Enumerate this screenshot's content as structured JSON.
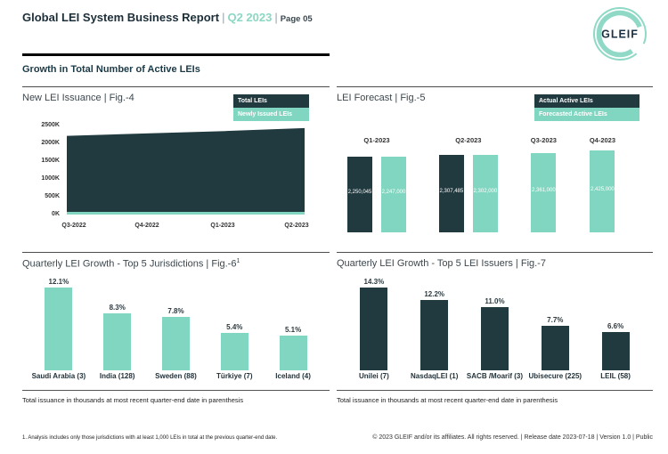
{
  "header": {
    "title": "Global LEI System Business Report",
    "sep": "|",
    "period": "Q2 2023",
    "page_label": "Page 05",
    "logo": "GLEIF"
  },
  "section_heading": "Growth in Total Number of Active LEIs",
  "colors": {
    "dark": "#213a3f",
    "mint": "#80d6c0",
    "header_accent": "#8bd7c3",
    "heading_text": "#1b3a47"
  },
  "chart_data": [
    {
      "id": "fig4",
      "type": "area",
      "title": "New LEI Issuance | Fig.-4",
      "categories": [
        "Q3-2022",
        "Q4-2022",
        "Q1-2023",
        "Q2-2023"
      ],
      "series": [
        {
          "name": "Total LEIs",
          "color": "#213a3f",
          "values": [
            2200000,
            2270000,
            2340000,
            2425000
          ],
          "values_estimated": true
        },
        {
          "name": "Newly Issued LEIs",
          "color": "#80d6c0",
          "values": [
            75000,
            75000,
            75000,
            75000
          ],
          "values_estimated": true
        }
      ],
      "y_ticks": [
        "2500K",
        "2000K",
        "1500K",
        "1000K",
        "500K",
        "0K"
      ],
      "ylim": [
        0,
        2500000
      ],
      "legend_position": "top-right",
      "grid": false
    },
    {
      "id": "fig5",
      "type": "bar",
      "title": "LEI Forecast | Fig.-5",
      "categories": [
        "Q1-2023",
        "Q2-2023",
        "Q3-2023",
        "Q4-2023"
      ],
      "series": [
        {
          "name": "Actual Active LEIs",
          "color": "#213a3f",
          "values": [
            2250045,
            2307485,
            null,
            null
          ]
        },
        {
          "name": "Forecasted Active LEIs",
          "color": "#80d6c0",
          "values": [
            2247000,
            2302000,
            2361000,
            2425000
          ]
        }
      ],
      "bar_labels": [
        "2,250,045",
        "2,247,000",
        "2,307,485",
        "2,302,000",
        "2,361,000",
        "2,425,000"
      ],
      "legend_position": "top-right",
      "grid": false
    },
    {
      "id": "fig6",
      "type": "bar",
      "title_main": "Quarterly LEI Growth - Top 5 Jurisdictions | Fig.-6",
      "title_superscript": "1",
      "categories": [
        "Saudi Arabia (3)",
        "India (128)",
        "Sweden (88)",
        "Türkiye (7)",
        "Iceland (4)"
      ],
      "values": [
        12.1,
        8.3,
        7.8,
        5.4,
        5.1
      ],
      "value_labels": [
        "12.1%",
        "8.3%",
        "7.8%",
        "5.4%",
        "5.1%"
      ],
      "bar_color": "#80d6c0",
      "note": "Total issuance in thousands at most recent quarter-end date in parenthesis",
      "grid": false
    },
    {
      "id": "fig7",
      "type": "bar",
      "title": "Quarterly LEI Growth - Top 5 LEI Issuers | Fig.-7",
      "categories": [
        "Unilei (7)",
        "NasdaqLEI (1)",
        "SACB /Moarif (3)",
        "Ubisecure (225)",
        "LEIL (58)"
      ],
      "values": [
        14.3,
        12.2,
        11.0,
        7.7,
        6.6
      ],
      "value_labels": [
        "14.3%",
        "12.2%",
        "11.0%",
        "7.7%",
        "6.6%"
      ],
      "bar_color": "#213a3f",
      "note": "Total issuance in thousands at most recent quarter-end date in parenthesis",
      "grid": false
    }
  ],
  "footer": {
    "footnote": "1. Analysis includes only those jurisdictions with at least 1,000 LEIs in total at the previous quarter-end date.",
    "copyright": "© 2023 GLEIF and/or its affiliates. All rights reserved. | Release date 2023-07-18 | Version 1.0 | Public"
  }
}
